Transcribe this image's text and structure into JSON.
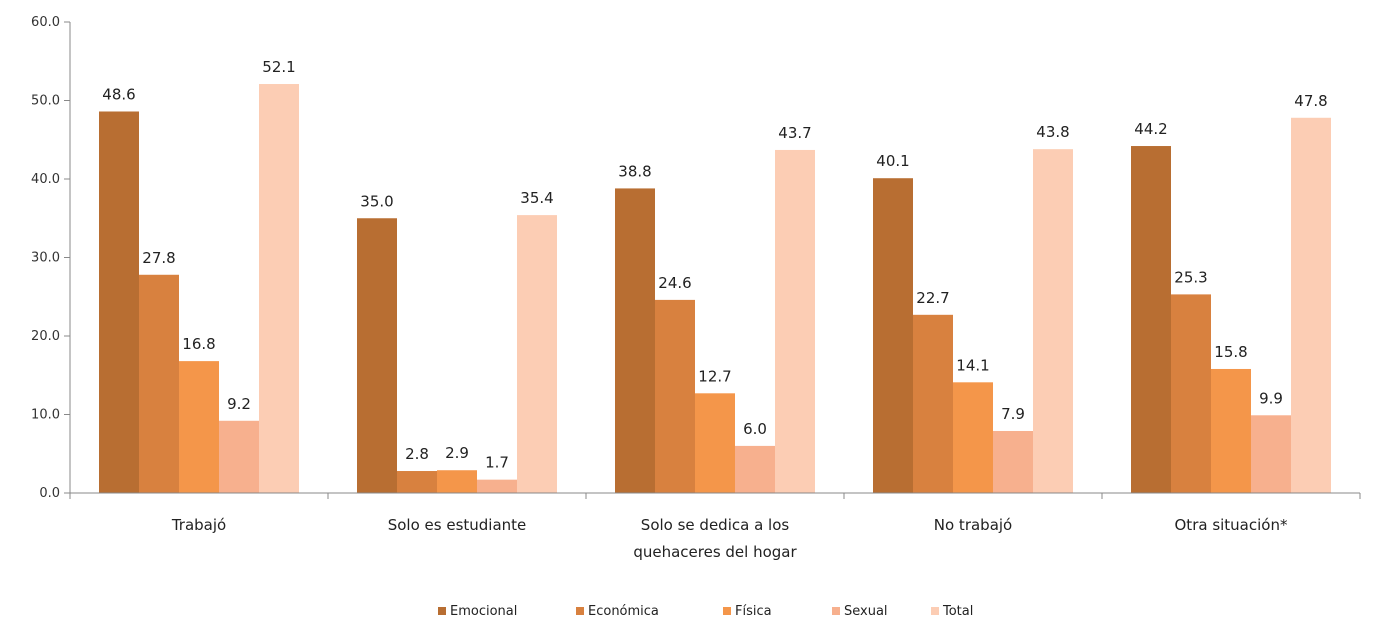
{
  "chart_data": {
    "type": "bar",
    "title": "",
    "xlabel": "",
    "ylabel": "",
    "ylim": [
      0,
      60
    ],
    "yticks": [
      "0.0",
      "10.0",
      "20.0",
      "30.0",
      "40.0",
      "50.0",
      "60.0"
    ],
    "grid": false,
    "legend_position": "bottom",
    "categories": [
      [
        "Trabajó"
      ],
      [
        "Solo es estudiante"
      ],
      [
        "Solo se dedica a los",
        "quehaceres del hogar"
      ],
      [
        "No trabajó"
      ],
      [
        "Otra situación*"
      ]
    ],
    "series": [
      {
        "name": "Emocional",
        "color": "#B86E32",
        "values": [
          48.6,
          35.0,
          38.8,
          40.1,
          44.2
        ]
      },
      {
        "name": "Económica",
        "color": "#D8813F",
        "values": [
          27.8,
          2.8,
          24.6,
          22.7,
          25.3
        ]
      },
      {
        "name": "Física",
        "color": "#F4964A",
        "values": [
          16.8,
          2.9,
          12.7,
          14.1,
          15.8
        ]
      },
      {
        "name": "Sexual",
        "color": "#F7B08E",
        "values": [
          9.2,
          1.7,
          6.0,
          7.9,
          9.9
        ]
      },
      {
        "name": "Total",
        "color": "#FCCDB4",
        "values": [
          52.1,
          35.4,
          43.7,
          43.8,
          47.8
        ]
      }
    ]
  }
}
